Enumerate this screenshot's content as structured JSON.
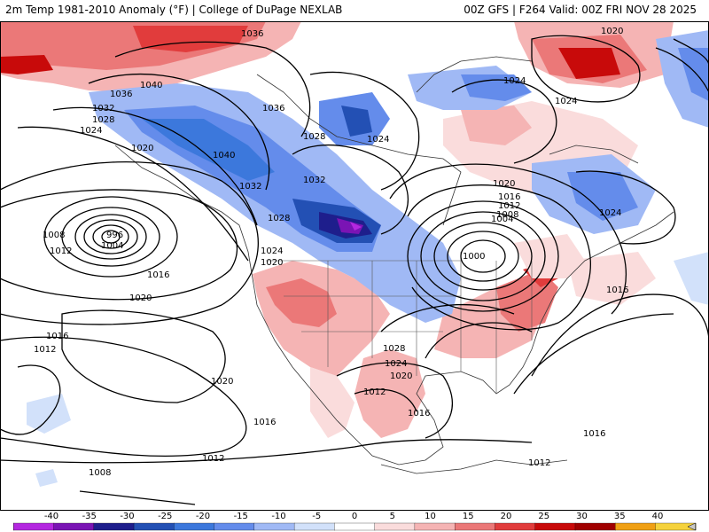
{
  "header": {
    "left_title": "2m Temp 1981-2010 Anomaly (°F) | College of DuPage NEXLAB",
    "right_title": "00Z GFS | F264 Valid: 00Z FRI NOV 28 2025"
  },
  "map": {
    "isobar_labels": [
      "1036",
      "1040",
      "1036",
      "1032",
      "1028",
      "1024",
      "1020",
      "1040",
      "1036",
      "1028",
      "1024",
      "1032",
      "1032",
      "1028",
      "1024",
      "1020",
      "1024",
      "1024",
      "1020",
      "1016",
      "1012",
      "1008",
      "1004",
      "1000",
      "1008",
      "1012",
      "1004",
      "996",
      "1016",
      "1020",
      "1016",
      "1012",
      "1028",
      "1024",
      "1020",
      "1016",
      "1012",
      "1016",
      "1012",
      "1020",
      "1016",
      "1012",
      "1008",
      "1016",
      "1024",
      "1020"
    ]
  },
  "colorbar": {
    "ticks": [
      "-40",
      "-35",
      "-30",
      "-25",
      "-20",
      "-15",
      "-10",
      "-5",
      "0",
      "5",
      "10",
      "15",
      "20",
      "25",
      "30",
      "35",
      "40"
    ],
    "colors": [
      "#f048f0",
      "#b428e0",
      "#7a14b4",
      "#1e1e8c",
      "#2350b4",
      "#3c78dc",
      "#648ceb",
      "#a0b9f5",
      "#d2e1fa",
      "#ffffff",
      "#fadcdc",
      "#f5b4b4",
      "#eb7878",
      "#e13c3c",
      "#c80a0a",
      "#a00000",
      "#f0a014",
      "#f5d23c",
      "#c8c8c8"
    ]
  }
}
